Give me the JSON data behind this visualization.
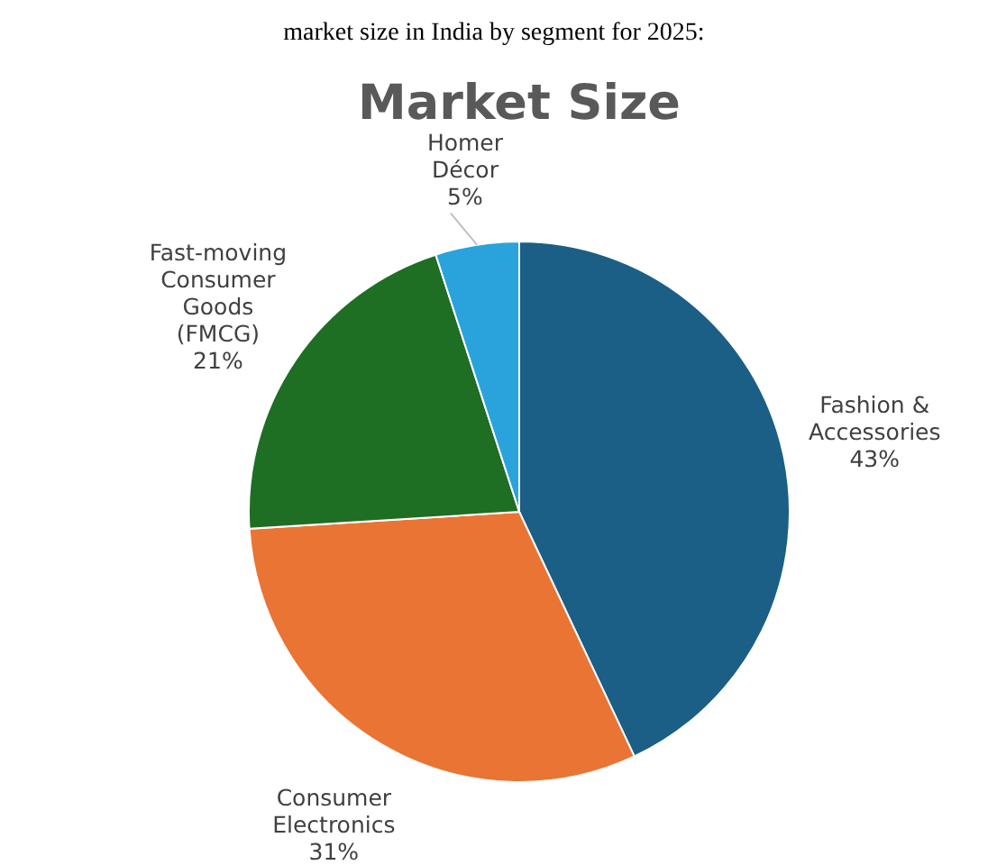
{
  "chart_data": {
    "type": "pie",
    "title": "Market Size",
    "annotations": [
      "market size in India by segment for 2025:"
    ],
    "categories": [
      "Fashion & Accessories",
      "Consumer Electronics",
      "Fast-moving Consumer Goods (FMCG)",
      "Homer Décor"
    ],
    "values": [
      43,
      31,
      21,
      5
    ],
    "value_labels": [
      "43%",
      "31%",
      "21%",
      "5%"
    ],
    "colors": [
      "#1b5e86",
      "#ea7434",
      "#1e6e23",
      "#2aa3dc"
    ]
  }
}
